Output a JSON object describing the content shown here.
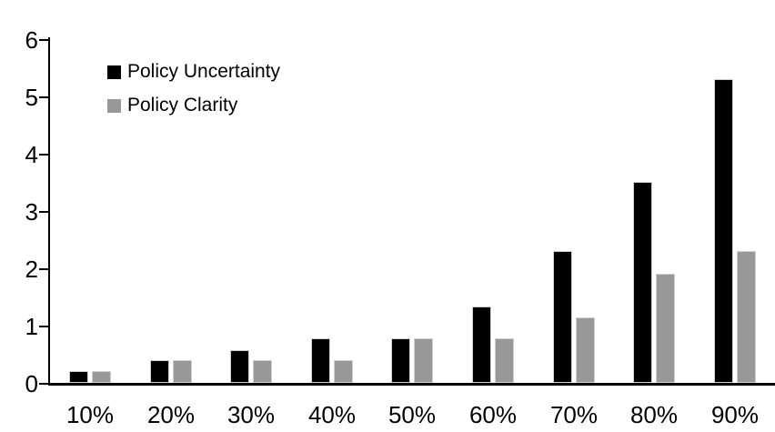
{
  "colors": {
    "series1": "#000000",
    "series2": "#989898",
    "axis": "#000000",
    "background": "#ffffff"
  },
  "legend": {
    "items": [
      {
        "label": "Policy Uncertainty",
        "color": "#000000"
      },
      {
        "label": "Policy Clarity",
        "color": "#989898"
      }
    ]
  },
  "chart_data": {
    "type": "bar",
    "title": "",
    "xlabel": "",
    "ylabel": "",
    "categories": [
      "10%",
      "20%",
      "30%",
      "40%",
      "50%",
      "60%",
      "70%",
      "80%",
      "90%"
    ],
    "series": [
      {
        "name": "Policy Uncertainty",
        "color": "#000000",
        "values": [
          0.2,
          0.4,
          0.57,
          0.77,
          0.78,
          1.33,
          2.3,
          3.5,
          5.3
        ]
      },
      {
        "name": "Policy Clarity",
        "color": "#989898",
        "values": [
          0.2,
          0.4,
          0.4,
          0.4,
          0.77,
          0.77,
          1.15,
          1.9,
          2.3
        ]
      }
    ],
    "ylim": [
      0,
      6
    ],
    "y_ticks": [
      0,
      1,
      2,
      3,
      4,
      5,
      6
    ],
    "grid": false,
    "legend_position": "upper-left-inside"
  }
}
